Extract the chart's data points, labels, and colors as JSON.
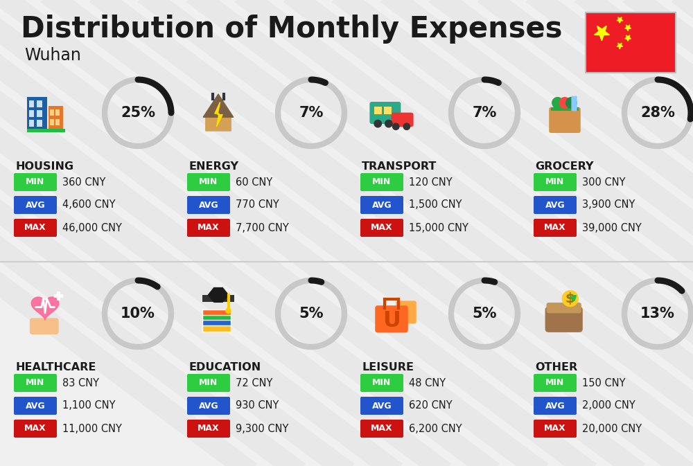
{
  "title": "Distribution of Monthly Expenses",
  "subtitle": "Wuhan",
  "background_color": "#f0f0f0",
  "categories": [
    {
      "name": "HOUSING",
      "percentage": 25,
      "icon": "housing",
      "min_val": "360 CNY",
      "avg_val": "4,600 CNY",
      "max_val": "46,000 CNY",
      "row": 0,
      "col": 0
    },
    {
      "name": "ENERGY",
      "percentage": 7,
      "icon": "energy",
      "min_val": "60 CNY",
      "avg_val": "770 CNY",
      "max_val": "7,700 CNY",
      "row": 0,
      "col": 1
    },
    {
      "name": "TRANSPORT",
      "percentage": 7,
      "icon": "transport",
      "min_val": "120 CNY",
      "avg_val": "1,500 CNY",
      "max_val": "15,000 CNY",
      "row": 0,
      "col": 2
    },
    {
      "name": "GROCERY",
      "percentage": 28,
      "icon": "grocery",
      "min_val": "300 CNY",
      "avg_val": "3,900 CNY",
      "max_val": "39,000 CNY",
      "row": 0,
      "col": 3
    },
    {
      "name": "HEALTHCARE",
      "percentage": 10,
      "icon": "healthcare",
      "min_val": "83 CNY",
      "avg_val": "1,100 CNY",
      "max_val": "11,000 CNY",
      "row": 1,
      "col": 0
    },
    {
      "name": "EDUCATION",
      "percentage": 5,
      "icon": "education",
      "min_val": "72 CNY",
      "avg_val": "930 CNY",
      "max_val": "9,300 CNY",
      "row": 1,
      "col": 1
    },
    {
      "name": "LEISURE",
      "percentage": 5,
      "icon": "leisure",
      "min_val": "48 CNY",
      "avg_val": "620 CNY",
      "max_val": "6,200 CNY",
      "row": 1,
      "col": 2
    },
    {
      "name": "OTHER",
      "percentage": 13,
      "icon": "other",
      "min_val": "150 CNY",
      "avg_val": "2,000 CNY",
      "max_val": "20,000 CNY",
      "row": 1,
      "col": 3
    }
  ],
  "min_color": "#2ecc40",
  "avg_color": "#2255cc",
  "max_color": "#cc1111",
  "badge_text_color": "#ffffff",
  "text_color": "#1a1a1a",
  "circle_bg_color": "#c8c8c8",
  "arc_color": "#1a1a1a",
  "divider_color": "#cccccc",
  "flag_red": "#ee1c25",
  "flag_yellow": "#ffff00",
  "stripe_color": "#e6e6e6"
}
